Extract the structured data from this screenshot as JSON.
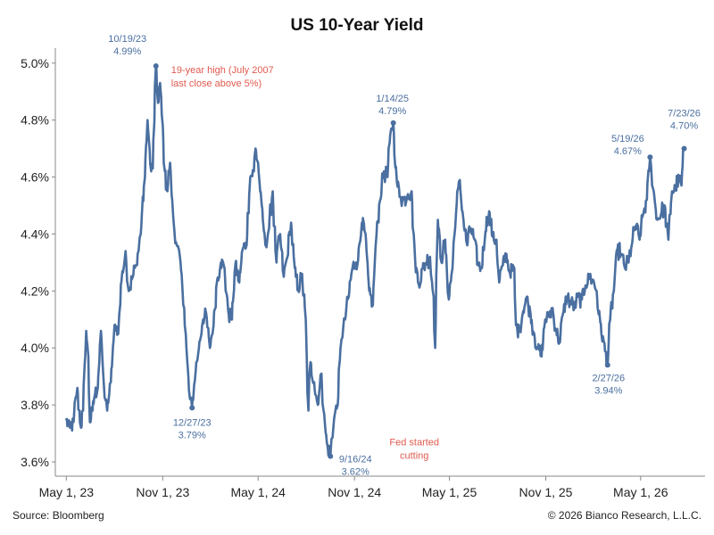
{
  "chart_data": {
    "type": "line",
    "title": "US 10-Year Yield",
    "xlabel": "",
    "ylabel": "",
    "ylim": [
      3.55,
      5.04
    ],
    "xlim": [
      "2023-04-10",
      "2026-09-01"
    ],
    "y_ticks": [
      "5.0%",
      "4.8%",
      "4.6%",
      "4.4%",
      "4.2%",
      "4.0%",
      "3.8%",
      "3.6%"
    ],
    "y_tick_values": [
      5.0,
      4.8,
      4.6,
      4.4,
      4.2,
      4.0,
      3.8,
      3.6
    ],
    "x_ticks": [
      "May 1, 23",
      "Nov 1, 23",
      "May 1, 24",
      "Nov 1, 24",
      "May 1, 25",
      "Nov 1, 25",
      "May 1, 26"
    ],
    "x_tick_dates": [
      "2023-05-01",
      "2023-11-01",
      "2024-05-01",
      "2024-11-01",
      "2025-05-01",
      "2025-11-01",
      "2026-05-01"
    ],
    "grid": false,
    "series": [
      {
        "color": "#4a6fa0",
        "points": [
          [
            "2023-05-01",
            3.75
          ],
          [
            "2023-05-08",
            3.72
          ],
          [
            "2023-05-15",
            3.74
          ],
          [
            "2023-05-22",
            3.86
          ],
          [
            "2023-05-29",
            3.72
          ],
          [
            "2023-06-02",
            3.78
          ],
          [
            "2023-06-08",
            4.06
          ],
          [
            "2023-06-12",
            3.97
          ],
          [
            "2023-06-15",
            3.74
          ],
          [
            "2023-06-20",
            3.78
          ],
          [
            "2023-06-25",
            3.84
          ],
          [
            "2023-06-30",
            3.86
          ],
          [
            "2023-07-06",
            4.06
          ],
          [
            "2023-07-12",
            3.86
          ],
          [
            "2023-07-18",
            3.78
          ],
          [
            "2023-07-25",
            3.88
          ],
          [
            "2023-08-01",
            4.08
          ],
          [
            "2023-08-08",
            4.05
          ],
          [
            "2023-08-16",
            4.27
          ],
          [
            "2023-08-22",
            4.34
          ],
          [
            "2023-08-28",
            4.2
          ],
          [
            "2023-09-05",
            4.25
          ],
          [
            "2023-09-12",
            4.29
          ],
          [
            "2023-09-20",
            4.4
          ],
          [
            "2023-09-28",
            4.6
          ],
          [
            "2023-10-03",
            4.8
          ],
          [
            "2023-10-06",
            4.72
          ],
          [
            "2023-10-10",
            4.62
          ],
          [
            "2023-10-13",
            4.63
          ],
          [
            "2023-10-19",
            4.99
          ],
          [
            "2023-10-23",
            4.86
          ],
          [
            "2023-10-27",
            4.93
          ],
          [
            "2023-11-01",
            4.78
          ],
          [
            "2023-11-05",
            4.62
          ],
          [
            "2023-11-10",
            4.55
          ],
          [
            "2023-11-15",
            4.65
          ],
          [
            "2023-11-21",
            4.46
          ],
          [
            "2023-11-28",
            4.36
          ],
          [
            "2023-12-05",
            4.3
          ],
          [
            "2023-12-12",
            4.14
          ],
          [
            "2023-12-18",
            3.95
          ],
          [
            "2023-12-23",
            3.82
          ],
          [
            "2023-12-27",
            3.79
          ],
          [
            "2024-01-03",
            3.92
          ],
          [
            "2024-01-09",
            4.0
          ],
          [
            "2024-01-17",
            4.1
          ],
          [
            "2024-01-23",
            4.12
          ],
          [
            "2024-01-30",
            4.0
          ],
          [
            "2024-02-06",
            4.08
          ],
          [
            "2024-02-13",
            4.24
          ],
          [
            "2024-02-20",
            4.3
          ],
          [
            "2024-02-27",
            4.28
          ],
          [
            "2024-03-05",
            4.13
          ],
          [
            "2024-03-12",
            4.1
          ],
          [
            "2024-03-19",
            4.3
          ],
          [
            "2024-03-26",
            4.23
          ],
          [
            "2024-04-02",
            4.35
          ],
          [
            "2024-04-09",
            4.36
          ],
          [
            "2024-04-16",
            4.6
          ],
          [
            "2024-04-23",
            4.62
          ],
          [
            "2024-04-26",
            4.7
          ],
          [
            "2024-05-01",
            4.65
          ],
          [
            "2024-05-08",
            4.5
          ],
          [
            "2024-05-15",
            4.36
          ],
          [
            "2024-05-22",
            4.42
          ],
          [
            "2024-05-29",
            4.55
          ],
          [
            "2024-06-05",
            4.3
          ],
          [
            "2024-06-12",
            4.4
          ],
          [
            "2024-06-19",
            4.25
          ],
          [
            "2024-06-26",
            4.32
          ],
          [
            "2024-07-03",
            4.44
          ],
          [
            "2024-07-10",
            4.28
          ],
          [
            "2024-07-17",
            4.2
          ],
          [
            "2024-07-24",
            4.26
          ],
          [
            "2024-07-31",
            4.1
          ],
          [
            "2024-08-05",
            3.78
          ],
          [
            "2024-08-09",
            3.95
          ],
          [
            "2024-08-16",
            3.88
          ],
          [
            "2024-08-23",
            3.8
          ],
          [
            "2024-08-30",
            3.91
          ],
          [
            "2024-09-06",
            3.72
          ],
          [
            "2024-09-11",
            3.65
          ],
          [
            "2024-09-16",
            3.62
          ],
          [
            "2024-09-23",
            3.75
          ],
          [
            "2024-09-30",
            3.8
          ],
          [
            "2024-10-07",
            4.03
          ],
          [
            "2024-10-14",
            4.1
          ],
          [
            "2024-10-21",
            4.18
          ],
          [
            "2024-10-28",
            4.28
          ],
          [
            "2024-11-04",
            4.3
          ],
          [
            "2024-11-08",
            4.31
          ],
          [
            "2024-11-15",
            4.44
          ],
          [
            "2024-11-22",
            4.4
          ],
          [
            "2024-11-29",
            4.2
          ],
          [
            "2024-12-06",
            4.15
          ],
          [
            "2024-12-13",
            4.4
          ],
          [
            "2024-12-20",
            4.52
          ],
          [
            "2024-12-27",
            4.62
          ],
          [
            "2025-01-03",
            4.6
          ],
          [
            "2025-01-10",
            4.77
          ],
          [
            "2025-01-14",
            4.79
          ],
          [
            "2025-01-21",
            4.58
          ],
          [
            "2025-01-28",
            4.53
          ],
          [
            "2025-02-04",
            4.52
          ],
          [
            "2025-02-11",
            4.54
          ],
          [
            "2025-02-18",
            4.55
          ],
          [
            "2025-02-25",
            4.3
          ],
          [
            "2025-03-04",
            4.22
          ],
          [
            "2025-03-11",
            4.28
          ],
          [
            "2025-03-18",
            4.3
          ],
          [
            "2025-03-25",
            4.32
          ],
          [
            "2025-04-01",
            4.18
          ],
          [
            "2025-04-04",
            4.0
          ],
          [
            "2025-04-09",
            4.45
          ],
          [
            "2025-04-16",
            4.3
          ],
          [
            "2025-04-23",
            4.38
          ],
          [
            "2025-04-30",
            4.17
          ],
          [
            "2025-05-07",
            4.28
          ],
          [
            "2025-05-14",
            4.48
          ],
          [
            "2025-05-21",
            4.59
          ],
          [
            "2025-05-28",
            4.45
          ],
          [
            "2025-06-04",
            4.36
          ],
          [
            "2025-06-11",
            4.42
          ],
          [
            "2025-06-18",
            4.38
          ],
          [
            "2025-06-25",
            4.29
          ],
          [
            "2025-07-02",
            4.28
          ],
          [
            "2025-07-09",
            4.41
          ],
          [
            "2025-07-16",
            4.48
          ],
          [
            "2025-07-23",
            4.39
          ],
          [
            "2025-07-30",
            4.38
          ],
          [
            "2025-08-04",
            4.23
          ],
          [
            "2025-08-11",
            4.29
          ],
          [
            "2025-08-18",
            4.33
          ],
          [
            "2025-08-25",
            4.26
          ],
          [
            "2025-09-02",
            4.28
          ],
          [
            "2025-09-05",
            4.08
          ],
          [
            "2025-09-12",
            4.06
          ],
          [
            "2025-09-19",
            4.13
          ],
          [
            "2025-09-26",
            4.18
          ],
          [
            "2025-10-03",
            4.12
          ],
          [
            "2025-10-10",
            4.05
          ],
          [
            "2025-10-17",
            4.0
          ],
          [
            "2025-10-24",
            3.97
          ],
          [
            "2025-10-31",
            4.1
          ],
          [
            "2025-11-07",
            4.11
          ],
          [
            "2025-11-14",
            4.14
          ],
          [
            "2025-11-21",
            4.06
          ],
          [
            "2025-11-28",
            4.02
          ],
          [
            "2025-12-05",
            4.13
          ],
          [
            "2025-12-12",
            4.18
          ],
          [
            "2025-12-19",
            4.16
          ],
          [
            "2025-12-26",
            4.14
          ],
          [
            "2026-01-02",
            4.18
          ],
          [
            "2026-01-09",
            4.17
          ],
          [
            "2026-01-16",
            4.22
          ],
          [
            "2026-01-23",
            4.25
          ],
          [
            "2026-01-30",
            4.24
          ],
          [
            "2026-02-06",
            4.2
          ],
          [
            "2026-02-13",
            4.09
          ],
          [
            "2026-02-20",
            4.02
          ],
          [
            "2026-02-27",
            3.94
          ],
          [
            "2026-03-04",
            4.1
          ],
          [
            "2026-03-11",
            4.2
          ],
          [
            "2026-03-18",
            4.35
          ],
          [
            "2026-03-25",
            4.33
          ],
          [
            "2026-04-01",
            4.28
          ],
          [
            "2026-04-08",
            4.3
          ],
          [
            "2026-04-15",
            4.37
          ],
          [
            "2026-04-22",
            4.43
          ],
          [
            "2026-04-29",
            4.38
          ],
          [
            "2026-05-06",
            4.47
          ],
          [
            "2026-05-13",
            4.52
          ],
          [
            "2026-05-19",
            4.67
          ],
          [
            "2026-05-26",
            4.55
          ],
          [
            "2026-06-02",
            4.45
          ],
          [
            "2026-06-09",
            4.47
          ],
          [
            "2026-06-16",
            4.5
          ],
          [
            "2026-06-23",
            4.38
          ],
          [
            "2026-06-30",
            4.55
          ],
          [
            "2026-07-07",
            4.56
          ],
          [
            "2026-07-14",
            4.6
          ],
          [
            "2026-07-18",
            4.57
          ],
          [
            "2026-07-23",
            4.7
          ]
        ]
      }
    ],
    "annotations": [
      {
        "id": "peak-oct23",
        "date": "2023-10-19",
        "value": 4.99,
        "color": "#4a6fa0",
        "marker": true,
        "lines": [
          "10/19/23",
          "4.99%"
        ]
      },
      {
        "id": "note-19yr",
        "date": "2023-10-19",
        "value": 4.99,
        "color": "#e05a4f",
        "marker": false,
        "lines": [
          "19-year high (July 2007",
          "last close above 5%)"
        ]
      },
      {
        "id": "low-dec23",
        "date": "2023-12-27",
        "value": 3.79,
        "color": "#4a6fa0",
        "marker": true,
        "lines": [
          "12/27/23",
          "3.79%"
        ]
      },
      {
        "id": "low-sep24",
        "date": "2024-09-16",
        "value": 3.62,
        "color": "#4a6fa0",
        "marker": true,
        "lines": [
          "9/16/24",
          "3.62%"
        ]
      },
      {
        "id": "note-fed",
        "date": "2024-09-16",
        "value": 3.62,
        "color": "#e05a4f",
        "marker": false,
        "lines": [
          "Fed started",
          "cutting"
        ]
      },
      {
        "id": "peak-jan25",
        "date": "2025-01-14",
        "value": 4.79,
        "color": "#4a6fa0",
        "marker": true,
        "lines": [
          "1/14/25",
          "4.79%"
        ]
      },
      {
        "id": "low-feb26",
        "date": "2026-02-27",
        "value": 3.94,
        "color": "#4a6fa0",
        "marker": true,
        "lines": [
          "2/27/26",
          "3.94%"
        ]
      },
      {
        "id": "peak-may26",
        "date": "2026-05-19",
        "value": 4.67,
        "color": "#4a6fa0",
        "marker": true,
        "lines": [
          "5/19/26",
          "4.67%"
        ]
      },
      {
        "id": "last-jul26",
        "date": "2026-07-23",
        "value": 4.7,
        "color": "#4a6fa0",
        "marker": true,
        "lines": [
          "7/23/26",
          "4.70%"
        ]
      }
    ]
  },
  "footer": {
    "source": "Source: Bloomberg",
    "copyright": "© 2026 Bianco Research, L.L.C."
  }
}
